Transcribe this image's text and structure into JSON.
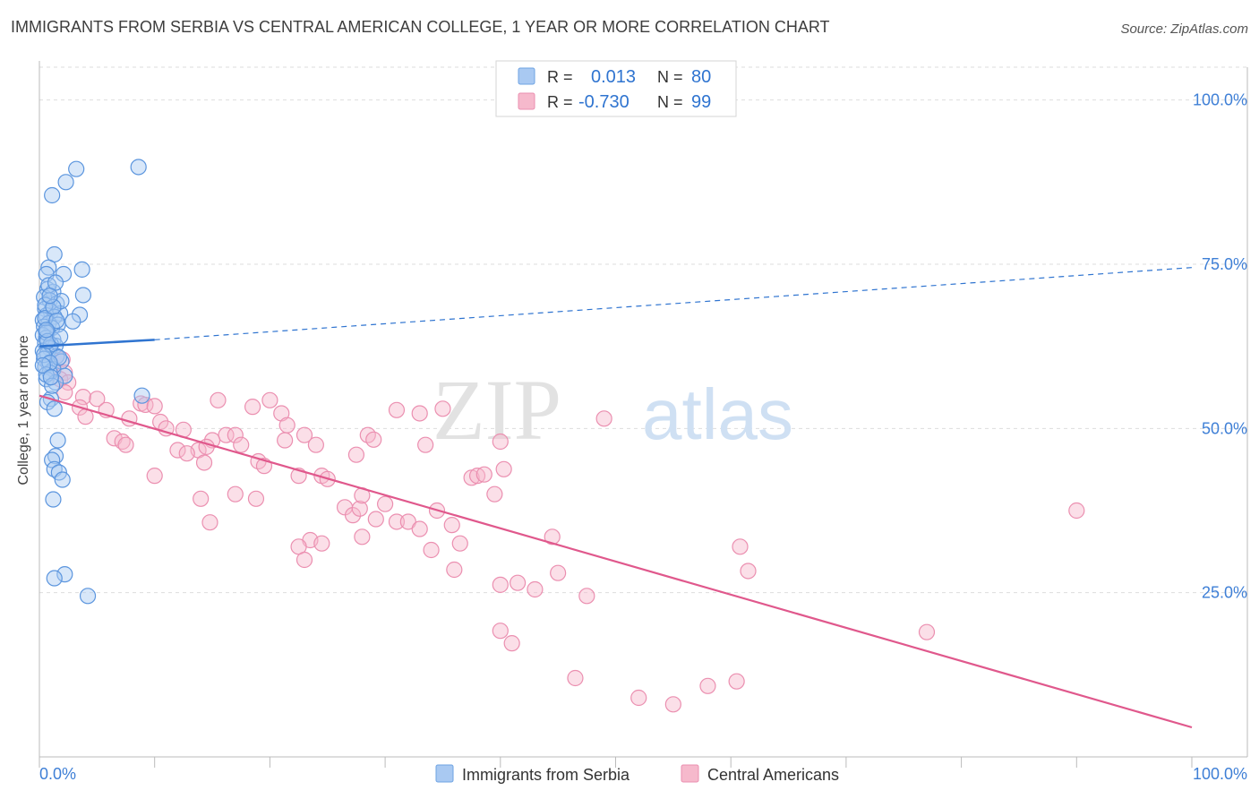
{
  "header": {
    "title": "IMMIGRANTS FROM SERBIA VS CENTRAL AMERICAN COLLEGE, 1 YEAR OR MORE CORRELATION CHART",
    "source": "Source: ZipAtlas.com"
  },
  "watermark": {
    "zip": "ZIP",
    "atlas": "atlas"
  },
  "colors": {
    "blue": "#2f74d0",
    "blue_fill": "#a9c9f2",
    "pink": "#e0588c",
    "pink_fill": "#f6b9cc",
    "axis_text": "#3e7fd6",
    "grid": "#dddddd"
  },
  "chart_data": {
    "type": "scatter",
    "title": "IMMIGRANTS FROM SERBIA VS CENTRAL AMERICAN COLLEGE, 1 YEAR OR MORE CORRELATION CHART",
    "xlabel": "",
    "ylabel": "College, 1 year or more",
    "xlim": [
      0,
      100
    ],
    "ylim": [
      0,
      105
    ],
    "x_tick_labels": [
      "0.0%",
      "100.0%"
    ],
    "y_ticks": [
      25,
      50,
      75,
      100
    ],
    "y_tick_labels": [
      "25.0%",
      "50.0%",
      "75.0%",
      "100.0%"
    ],
    "grid": true,
    "legend_stats": [
      {
        "r_label": "R =",
        "r_value": "0.013",
        "n_label": "N =",
        "n_value": "80"
      },
      {
        "r_label": "R =",
        "r_value": "-0.730",
        "n_label": "N =",
        "n_value": "99"
      }
    ],
    "series": [
      {
        "name": "Immigrants from Serbia",
        "color": "#2f74d0",
        "trend": {
          "x0": 0,
          "y0": 62.5,
          "x1": 10,
          "y1": 63.5,
          "dashed_to_x": 100,
          "dashed_to_y": 74.5
        },
        "points": [
          [
            3.2,
            89.5
          ],
          [
            8.6,
            89.8
          ],
          [
            2.3,
            87.5
          ],
          [
            1.1,
            85.5
          ],
          [
            1.3,
            76.5
          ],
          [
            0.8,
            74.5
          ],
          [
            3.7,
            74.2
          ],
          [
            0.6,
            73.5
          ],
          [
            2.1,
            73.5
          ],
          [
            0.7,
            71.2
          ],
          [
            1.2,
            70.8
          ],
          [
            3.8,
            70.3
          ],
          [
            0.4,
            70.0
          ],
          [
            0.9,
            69.5
          ],
          [
            1.5,
            69.0
          ],
          [
            0.5,
            68.2
          ],
          [
            1.0,
            67.8
          ],
          [
            1.8,
            67.5
          ],
          [
            3.5,
            67.3
          ],
          [
            0.6,
            67.2
          ],
          [
            1.3,
            67.0
          ],
          [
            0.3,
            66.5
          ],
          [
            2.9,
            66.3
          ],
          [
            0.8,
            66.0
          ],
          [
            1.6,
            65.8
          ],
          [
            0.4,
            65.5
          ],
          [
            1.1,
            65.3
          ],
          [
            0.7,
            64.8
          ],
          [
            0.3,
            64.2
          ],
          [
            0.6,
            63.8
          ],
          [
            1.2,
            63.5
          ],
          [
            0.5,
            63.0
          ],
          [
            1.4,
            62.6
          ],
          [
            0.9,
            62.2
          ],
          [
            0.3,
            61.8
          ],
          [
            0.7,
            61.4
          ],
          [
            1.5,
            61.0
          ],
          [
            0.4,
            60.6
          ],
          [
            1.9,
            60.2
          ],
          [
            0.8,
            59.8
          ],
          [
            0.5,
            59.4
          ],
          [
            1.2,
            59.0
          ],
          [
            0.9,
            58.5
          ],
          [
            2.2,
            58.0
          ],
          [
            0.6,
            57.5
          ],
          [
            1.4,
            57.0
          ],
          [
            8.9,
            55.0
          ],
          [
            1.0,
            54.5
          ],
          [
            0.7,
            54.0
          ],
          [
            1.3,
            53.0
          ],
          [
            1.6,
            48.2
          ],
          [
            1.4,
            45.8
          ],
          [
            1.1,
            45.2
          ],
          [
            1.3,
            43.8
          ],
          [
            1.7,
            43.3
          ],
          [
            2.0,
            42.2
          ],
          [
            1.2,
            39.2
          ],
          [
            2.2,
            27.8
          ],
          [
            1.3,
            27.2
          ],
          [
            4.2,
            24.5
          ],
          [
            0.5,
            68.8
          ],
          [
            1.9,
            69.4
          ],
          [
            0.6,
            64.6
          ],
          [
            1.0,
            62.8
          ],
          [
            0.4,
            61.2
          ],
          [
            1.7,
            60.8
          ],
          [
            0.9,
            60.0
          ],
          [
            0.6,
            58.2
          ],
          [
            1.1,
            56.5
          ],
          [
            0.8,
            71.8
          ],
          [
            1.4,
            72.2
          ],
          [
            0.5,
            66.8
          ],
          [
            1.2,
            68.5
          ],
          [
            0.7,
            63.3
          ],
          [
            1.8,
            64.0
          ],
          [
            0.3,
            59.6
          ],
          [
            1.0,
            57.8
          ],
          [
            1.5,
            66.4
          ],
          [
            0.9,
            70.2
          ],
          [
            0.6,
            65.0
          ]
        ]
      },
      {
        "name": "Central Americans",
        "color": "#e0588c",
        "trend": {
          "x0": 0,
          "y0": 55.0,
          "x1": 100,
          "y1": 4.5
        },
        "points": [
          [
            1.5,
            61.0
          ],
          [
            2.0,
            60.5
          ],
          [
            1.2,
            59.0
          ],
          [
            2.2,
            58.5
          ],
          [
            1.8,
            57.5
          ],
          [
            2.5,
            57.0
          ],
          [
            2.2,
            55.5
          ],
          [
            3.8,
            54.8
          ],
          [
            5.0,
            54.5
          ],
          [
            8.8,
            53.8
          ],
          [
            9.2,
            53.6
          ],
          [
            10.0,
            53.4
          ],
          [
            3.5,
            53.2
          ],
          [
            5.8,
            52.8
          ],
          [
            4.0,
            51.8
          ],
          [
            7.8,
            51.5
          ],
          [
            10.5,
            51.0
          ],
          [
            11.0,
            50.0
          ],
          [
            12.5,
            49.8
          ],
          [
            6.5,
            48.5
          ],
          [
            7.2,
            48.0
          ],
          [
            7.5,
            47.5
          ],
          [
            16.2,
            49.0
          ],
          [
            17.0,
            49.0
          ],
          [
            15.0,
            48.2
          ],
          [
            12.0,
            46.7
          ],
          [
            13.8,
            46.7
          ],
          [
            14.5,
            47.2
          ],
          [
            12.8,
            46.2
          ],
          [
            14.3,
            44.8
          ],
          [
            17.5,
            47.5
          ],
          [
            19.0,
            45.0
          ],
          [
            19.5,
            44.3
          ],
          [
            10.0,
            42.8
          ],
          [
            15.5,
            54.3
          ],
          [
            18.5,
            53.3
          ],
          [
            20.0,
            54.3
          ],
          [
            21.0,
            52.3
          ],
          [
            21.5,
            50.5
          ],
          [
            21.3,
            48.2
          ],
          [
            23.0,
            49.0
          ],
          [
            24.0,
            47.5
          ],
          [
            22.5,
            42.8
          ],
          [
            24.5,
            42.8
          ],
          [
            25.0,
            42.3
          ],
          [
            28.5,
            49.0
          ],
          [
            29.0,
            48.3
          ],
          [
            27.5,
            46.0
          ],
          [
            31.0,
            52.8
          ],
          [
            33.0,
            52.3
          ],
          [
            35.0,
            53.0
          ],
          [
            33.5,
            47.5
          ],
          [
            14.0,
            39.3
          ],
          [
            17.0,
            40.0
          ],
          [
            18.8,
            39.3
          ],
          [
            14.8,
            35.7
          ],
          [
            26.5,
            38.0
          ],
          [
            27.2,
            36.8
          ],
          [
            27.8,
            37.8
          ],
          [
            28.0,
            39.8
          ],
          [
            30.0,
            38.5
          ],
          [
            29.2,
            36.2
          ],
          [
            31.0,
            35.8
          ],
          [
            32.0,
            35.8
          ],
          [
            33.0,
            34.7
          ],
          [
            34.5,
            37.5
          ],
          [
            35.8,
            35.3
          ],
          [
            37.5,
            42.5
          ],
          [
            38.0,
            42.8
          ],
          [
            38.6,
            43.0
          ],
          [
            39.5,
            40.0
          ],
          [
            40.3,
            43.8
          ],
          [
            40.0,
            48.0
          ],
          [
            28.0,
            33.5
          ],
          [
            23.5,
            33.0
          ],
          [
            22.5,
            32.0
          ],
          [
            24.5,
            32.5
          ],
          [
            23.0,
            30.0
          ],
          [
            34.0,
            31.5
          ],
          [
            36.5,
            32.5
          ],
          [
            36.0,
            28.5
          ],
          [
            40.0,
            26.2
          ],
          [
            41.5,
            26.5
          ],
          [
            43.0,
            25.5
          ],
          [
            45.0,
            28.0
          ],
          [
            44.5,
            33.5
          ],
          [
            49.0,
            51.5
          ],
          [
            47.5,
            24.5
          ],
          [
            40.0,
            19.2
          ],
          [
            41.0,
            17.3
          ],
          [
            46.5,
            12.0
          ],
          [
            52.0,
            9.0
          ],
          [
            55.0,
            8.0
          ],
          [
            58.0,
            10.8
          ],
          [
            60.5,
            11.5
          ],
          [
            60.8,
            32.0
          ],
          [
            61.5,
            28.3
          ],
          [
            77.0,
            19.0
          ],
          [
            90.0,
            37.5
          ]
        ]
      }
    ]
  },
  "legend": {
    "items": [
      {
        "label": "Immigrants from Serbia"
      },
      {
        "label": "Central Americans"
      }
    ]
  }
}
